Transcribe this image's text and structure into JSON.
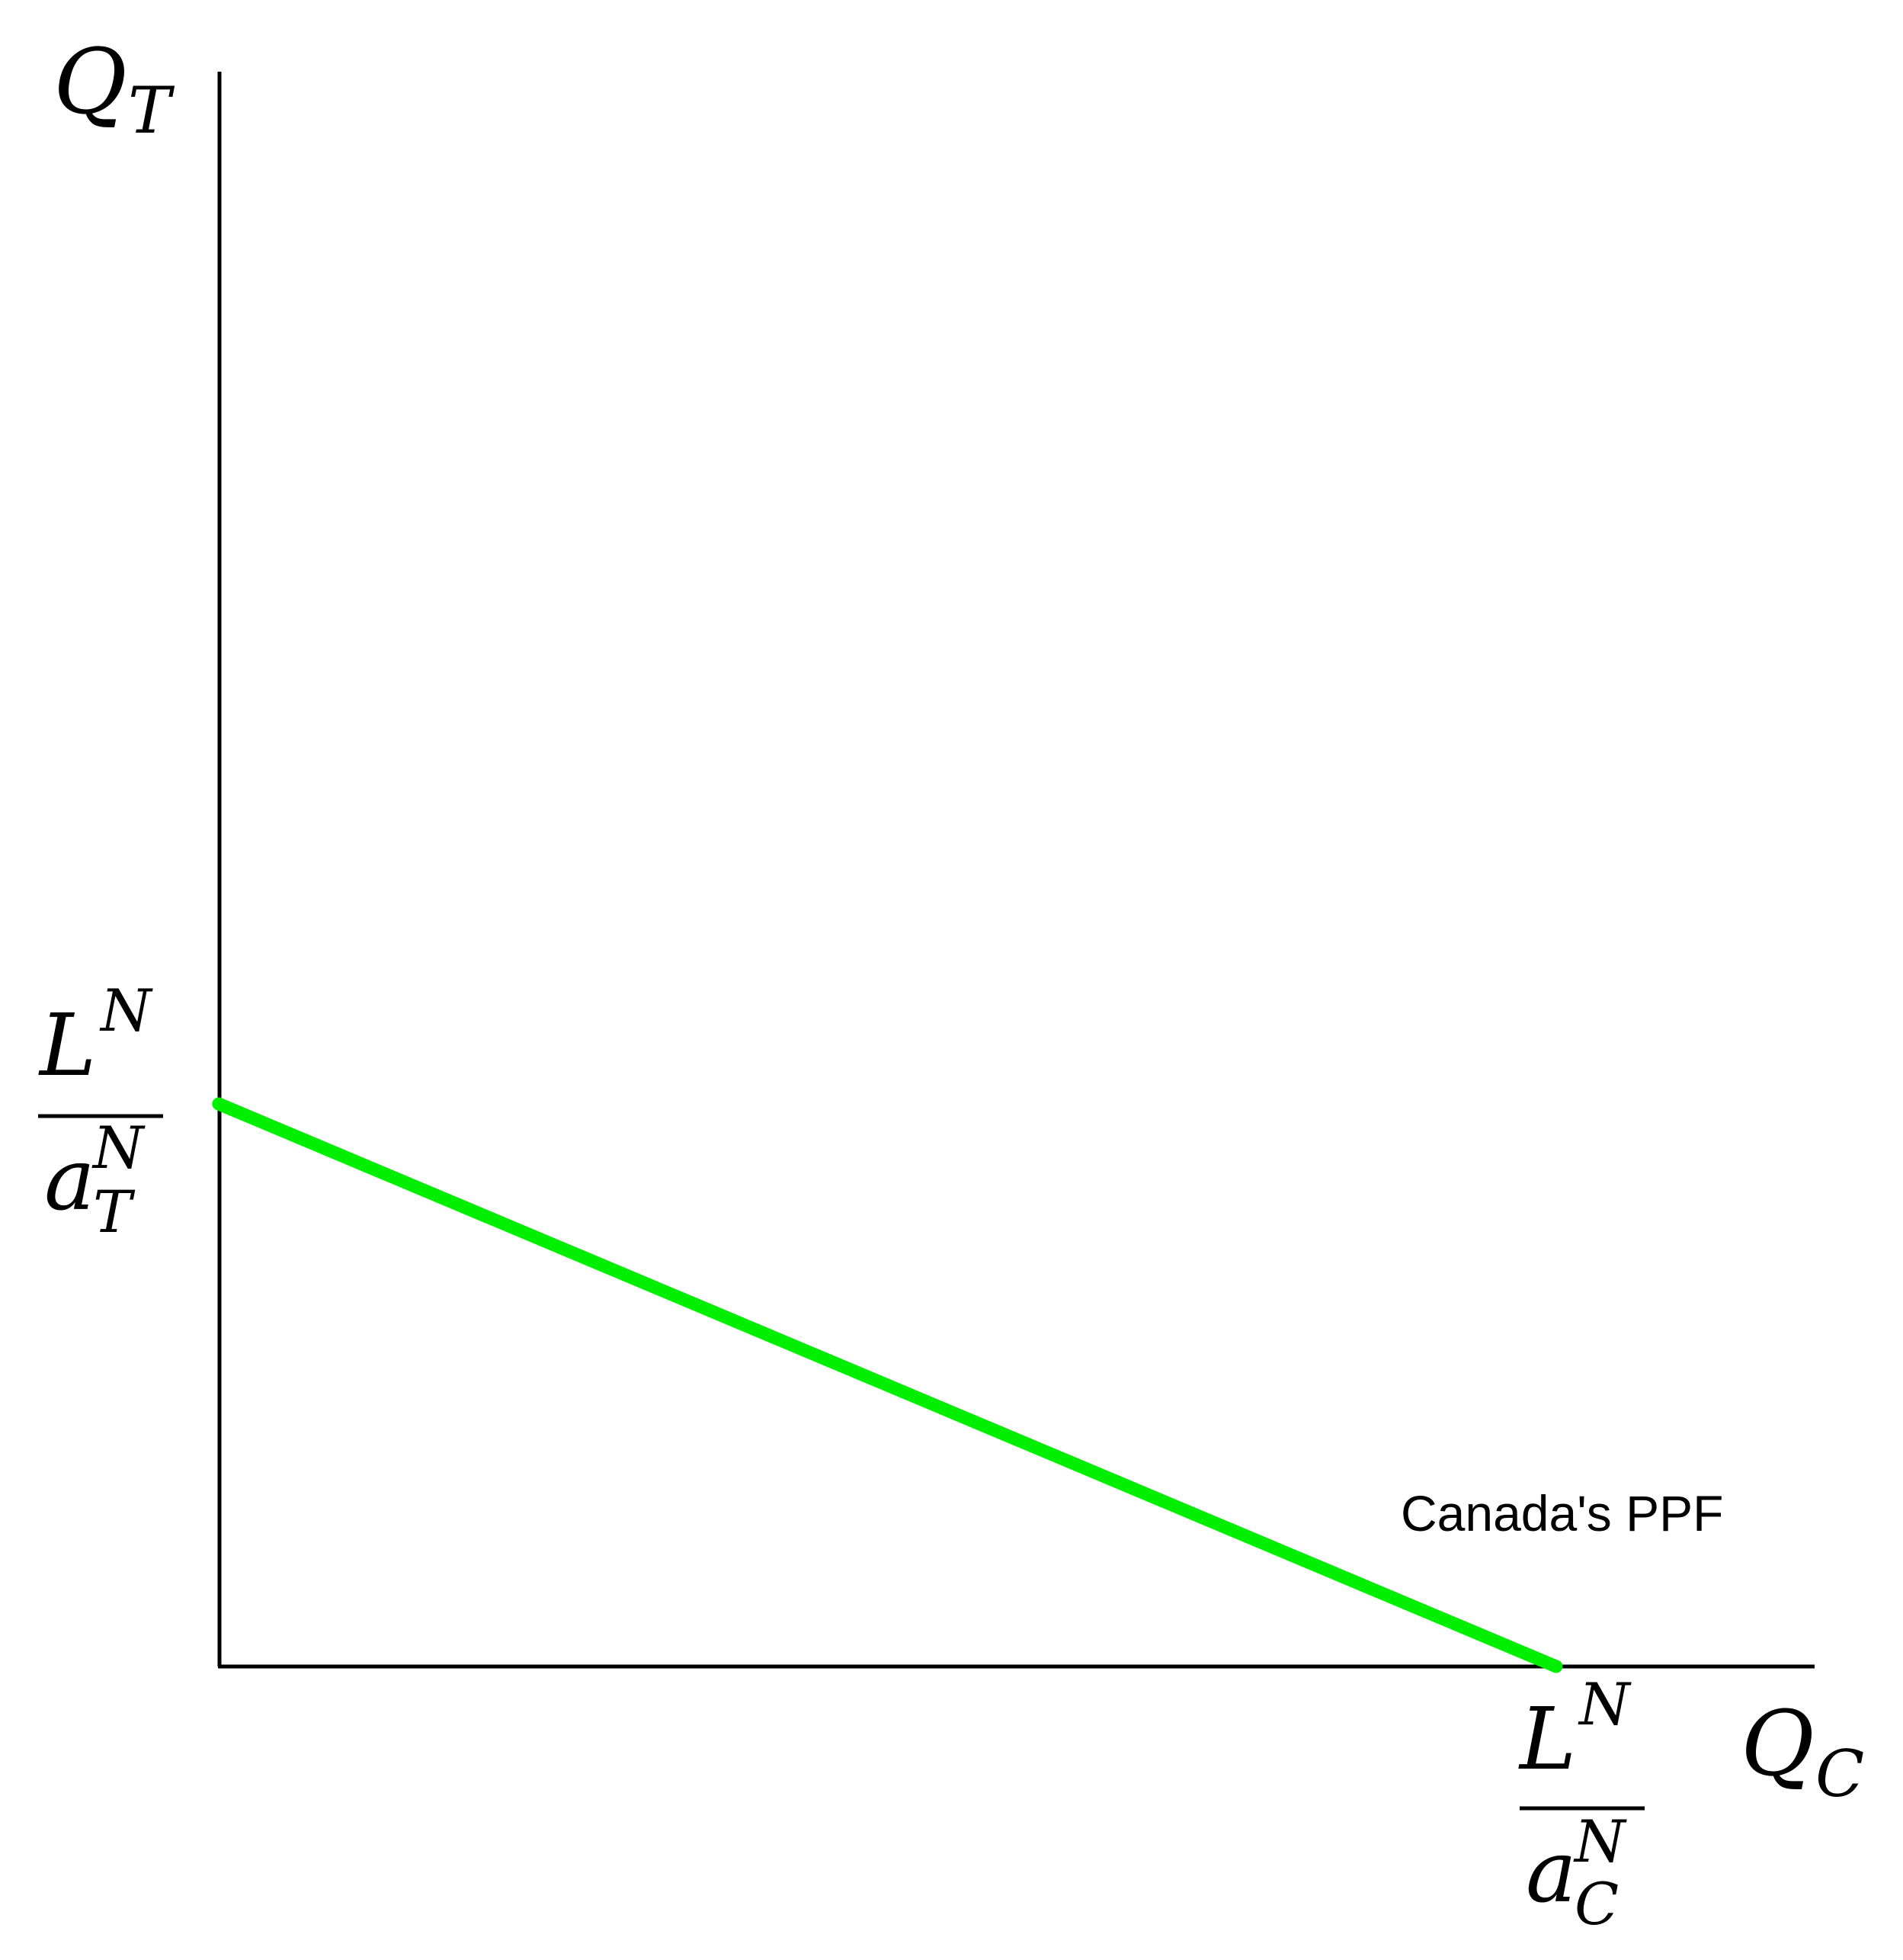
{
  "axes": {
    "y_label": {
      "main": "Q",
      "sub": "T"
    },
    "x_label": {
      "main": "Q",
      "sub": "C"
    }
  },
  "ticks": {
    "y_intercept": {
      "num_main": "L",
      "num_sup": "N",
      "den_main": "a",
      "den_sup": "N",
      "den_sub": "T"
    },
    "x_intercept": {
      "num_main": "L",
      "num_sup": "N",
      "den_main": "a",
      "den_sup": "N",
      "den_sub": "C"
    }
  },
  "curves": [
    {
      "label": "Canada's PPF",
      "color": "#00ee00"
    }
  ],
  "colors": {
    "axis": "#000000",
    "ppf": "#00ee00"
  }
}
